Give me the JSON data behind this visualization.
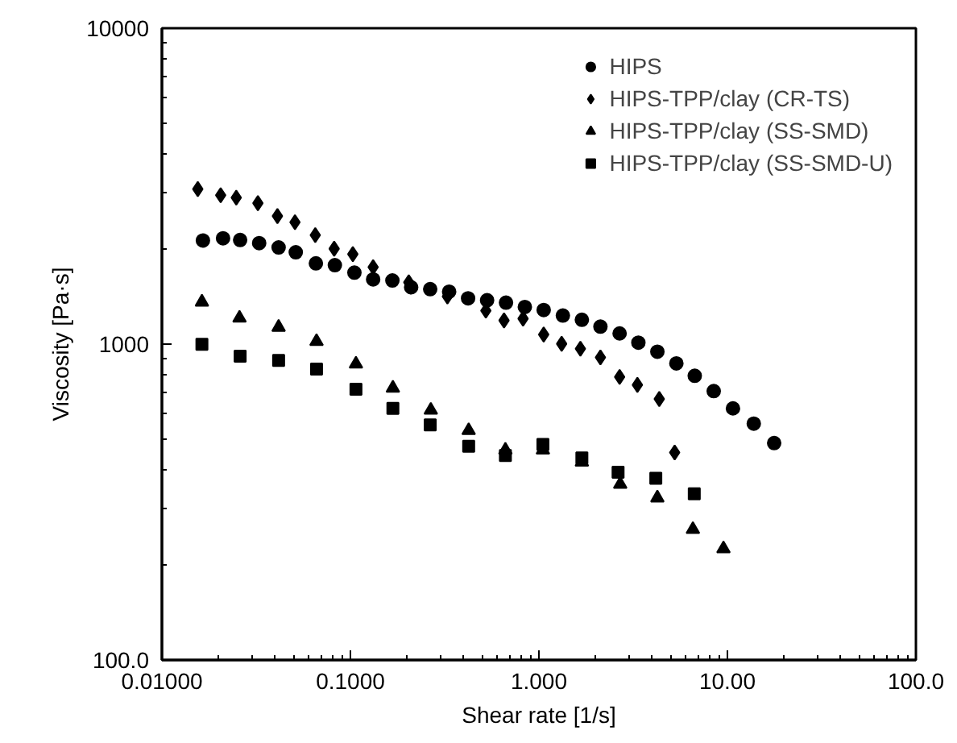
{
  "chart_data": {
    "type": "scatter",
    "xlabel": "Shear rate [1/s]",
    "ylabel": "Viscosity [Pa·s]",
    "log": "xy",
    "xlim": [
      0.01,
      100
    ],
    "ylim": [
      100,
      10000
    ],
    "xticks": [
      {
        "value": 0.01,
        "label": "0.01000"
      },
      {
        "value": 0.1,
        "label": "0.1000"
      },
      {
        "value": 1,
        "label": "1.000"
      },
      {
        "value": 10,
        "label": "10.00"
      },
      {
        "value": 100,
        "label": "100.0"
      }
    ],
    "yticks": [
      {
        "value": 100,
        "label": "100.0"
      },
      1000,
      10000
    ],
    "grid": false,
    "legend": "top right",
    "series": [
      {
        "name": "HIPS",
        "color": "#000000",
        "marker": "circle",
        "x": [
          0.0165,
          0.0211,
          0.026,
          0.0328,
          0.0416,
          0.0513,
          0.0656,
          0.0827,
          0.105,
          0.132,
          0.167,
          0.21,
          0.265,
          0.334,
          0.421,
          0.531,
          0.669,
          0.842,
          1.06,
          1.34,
          1.69,
          2.12,
          2.68,
          3.37,
          4.25,
          5.36,
          6.71,
          8.46,
          10.7,
          13.8,
          17.7
        ],
        "values": [
          2128,
          2163,
          2136,
          2088,
          2023,
          1953,
          1801,
          1777,
          1684,
          1603,
          1590,
          1513,
          1493,
          1466,
          1396,
          1377,
          1353,
          1311,
          1282,
          1231,
          1194,
          1136,
          1081,
          1011,
          946,
          869,
          794,
          710,
          626,
          560,
          486
        ]
      },
      {
        "name": "HIPS-TPP/clay (CR-TS)",
        "color": "#000000",
        "marker": "diamond",
        "x": [
          0.0155,
          0.0205,
          0.0248,
          0.0323,
          0.041,
          0.0508,
          0.0651,
          0.082,
          0.103,
          0.132,
          0.204,
          0.327,
          0.523,
          0.653,
          0.824,
          1.06,
          1.32,
          1.66,
          2.12,
          2.68,
          3.33,
          4.35,
          5.25
        ],
        "values": [
          3095,
          2960,
          2908,
          2793,
          2542,
          2432,
          2213,
          2005,
          1926,
          1753,
          1568,
          1415,
          1276,
          1188,
          1204,
          1072,
          1002,
          967,
          908,
          787,
          743,
          670,
          454
        ]
      },
      {
        "name": "HIPS-TPP/clay (SS-SMD)",
        "color": "#000000",
        "marker": "triangle",
        "x": [
          0.0163,
          0.0258,
          0.0416,
          0.0661,
          0.107,
          0.168,
          0.267,
          0.424,
          0.664,
          1.05,
          1.69,
          2.7,
          4.25,
          6.56,
          9.53
        ],
        "values": [
          1359,
          1209,
          1131,
          1020,
          865,
          726,
          618,
          533,
          462,
          462,
          423,
          360,
          326,
          259,
          225
        ]
      },
      {
        "name": "HIPS-TPP/clay (SS-SMD-U)",
        "color": "#000000",
        "marker": "square",
        "x": [
          0.0163,
          0.026,
          0.0416,
          0.0661,
          0.107,
          0.168,
          0.265,
          0.424,
          0.664,
          1.05,
          1.69,
          2.63,
          4.17,
          6.67
        ],
        "values": [
          998,
          916,
          888,
          834,
          720,
          626,
          555,
          475,
          444,
          481,
          436,
          393,
          376,
          336
        ]
      }
    ]
  }
}
